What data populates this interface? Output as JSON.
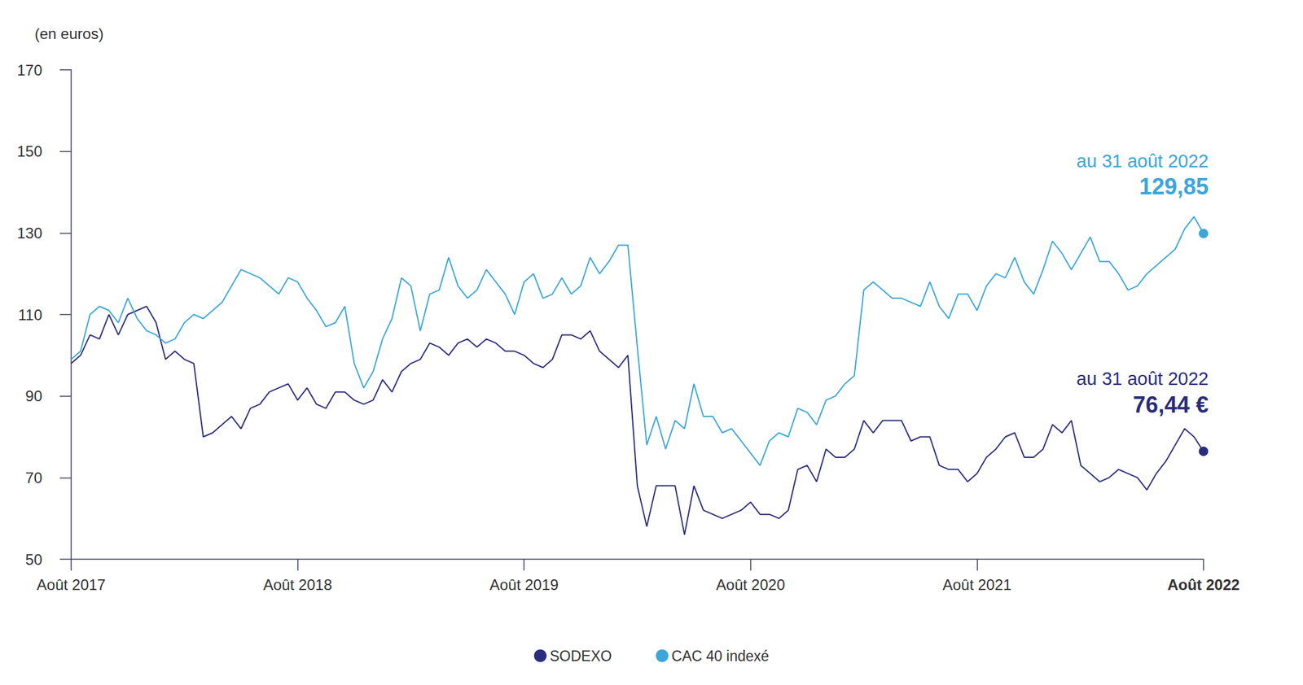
{
  "chart_data": {
    "type": "line",
    "y_label": "(en euros)",
    "categories": [
      "Août 2017",
      null,
      null,
      null,
      null,
      null,
      null,
      null,
      null,
      null,
      null,
      null,
      null,
      null,
      null,
      null,
      null,
      null,
      null,
      null,
      null,
      null,
      null,
      null,
      "Août 2018",
      null,
      null,
      null,
      null,
      null,
      null,
      null,
      null,
      null,
      null,
      null,
      null,
      null,
      null,
      null,
      null,
      null,
      null,
      null,
      null,
      null,
      null,
      null,
      "Août 2019",
      null,
      null,
      null,
      null,
      null,
      null,
      null,
      null,
      null,
      null,
      null,
      null,
      null,
      null,
      null,
      null,
      null,
      null,
      null,
      null,
      null,
      null,
      null,
      "Août 2020",
      null,
      null,
      null,
      null,
      null,
      null,
      null,
      null,
      null,
      null,
      null,
      null,
      null,
      null,
      null,
      null,
      null,
      null,
      null,
      null,
      null,
      null,
      null,
      "Août 2021",
      null,
      null,
      null,
      null,
      null,
      null,
      null,
      null,
      null,
      null,
      null,
      null,
      null,
      null,
      null,
      null,
      null,
      null,
      null,
      null,
      null,
      null,
      null,
      "Août 2022"
    ],
    "series": [
      {
        "name": "SODEXO",
        "color": "#2a2d7c",
        "marker": "circle",
        "values": [
          98,
          100,
          105,
          104,
          110,
          105,
          110,
          111,
          112,
          108,
          99,
          101,
          99,
          98,
          80,
          81,
          83,
          85,
          82,
          87,
          88,
          91,
          92,
          93,
          89,
          92,
          88,
          87,
          91,
          91,
          89,
          88,
          89,
          94,
          91,
          96,
          98,
          99,
          103,
          102,
          100,
          103,
          104,
          102,
          104,
          103,
          101,
          101,
          100,
          98,
          97,
          99,
          105,
          105,
          104,
          106,
          101,
          99,
          97,
          100,
          68,
          58,
          68,
          68,
          68,
          56,
          68,
          62,
          61,
          60,
          61,
          62,
          64,
          61,
          61,
          60,
          62,
          72,
          73,
          69,
          77,
          75,
          75,
          77,
          84,
          81,
          84,
          84,
          84,
          79,
          80,
          80,
          73,
          72,
          72,
          69,
          71,
          75,
          77,
          80,
          81,
          75,
          75,
          77,
          83,
          81,
          84,
          73,
          71,
          69,
          70,
          72,
          71,
          70,
          67,
          71,
          74,
          78,
          82,
          80,
          76.44
        ]
      },
      {
        "name": "CAC 40 indexé",
        "color": "#3aa6dc",
        "marker": "circle",
        "values": [
          99,
          101,
          110,
          112,
          111,
          108,
          114,
          109,
          106,
          105,
          103,
          104,
          108,
          110,
          109,
          111,
          113,
          117,
          121,
          120,
          119,
          117,
          115,
          119,
          118,
          114,
          111,
          107,
          108,
          112,
          98,
          92,
          96,
          104,
          109,
          119,
          117,
          106,
          115,
          116,
          124,
          117,
          114,
          116,
          121,
          118,
          115,
          110,
          118,
          120,
          114,
          115,
          119,
          115,
          117,
          124,
          120,
          123,
          127,
          127,
          102,
          78,
          85,
          77,
          84,
          82,
          93,
          85,
          85,
          81,
          82,
          79,
          76,
          73,
          79,
          81,
          80,
          87,
          86,
          83,
          89,
          90,
          93,
          95,
          116,
          118,
          116,
          114,
          114,
          113,
          112,
          118,
          112,
          109,
          115,
          115,
          111,
          117,
          120,
          119,
          124,
          118,
          115,
          121,
          128,
          125,
          121,
          125,
          129,
          123,
          123,
          120,
          116,
          117,
          120,
          122,
          124,
          126,
          131,
          134,
          129.85
        ]
      }
    ],
    "annotations": [
      {
        "series": "CAC 40 indexé",
        "text": "au 31 août 2022",
        "value_label": "129,85"
      },
      {
        "series": "SODEXO",
        "text": "au 31 août 2022",
        "value_label": "76,44 €"
      }
    ],
    "ylim": [
      50,
      170
    ],
    "yticks": [
      50,
      70,
      90,
      110,
      130,
      150,
      170
    ],
    "grid": false,
    "legend": "bottom"
  }
}
